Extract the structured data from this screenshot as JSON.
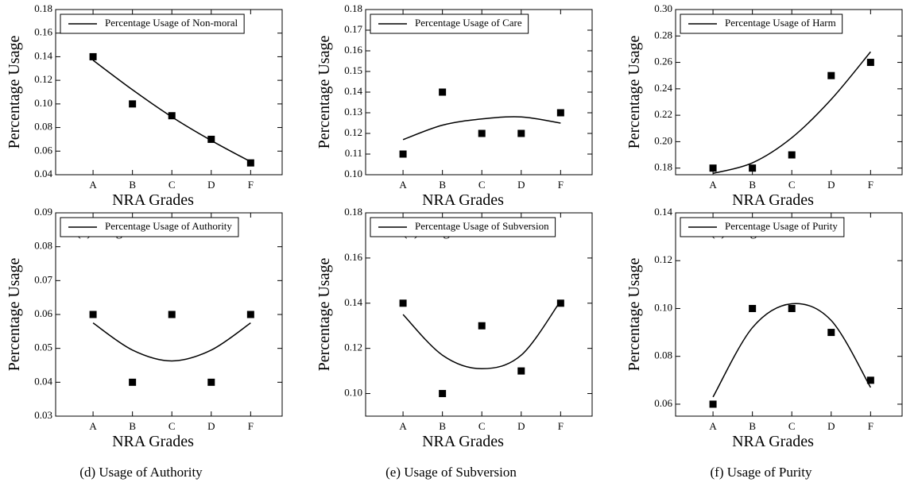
{
  "chart_data": [
    {
      "type": "scatter",
      "caption": "(a) Usage of Non-moral",
      "xlabel": "NRA Grades",
      "ylabel": "Percentage Usage",
      "categories": [
        "A",
        "B",
        "C",
        "D",
        "F"
      ],
      "values": [
        0.14,
        0.1,
        0.09,
        0.07,
        0.05
      ],
      "color": "#000000",
      "series": [
        {
          "name": "Percentage Usage of Non-moral",
          "color": "#000000",
          "values": [
            0.137,
            0.112,
            0.089,
            0.069,
            0.051
          ]
        }
      ],
      "ylim": [
        0.04,
        0.18
      ],
      "yticks": [
        0.04,
        0.06,
        0.08,
        {
          "value": 0.1,
          "label": "0.10"
        },
        0.12,
        0.14,
        0.16,
        0.18
      ],
      "legend": "upper left"
    },
    {
      "type": "scatter",
      "caption": "(b) Usage of Care",
      "xlabel": "NRA Grades",
      "ylabel": "Percentage Usage",
      "categories": [
        "A",
        "B",
        "C",
        "D",
        "F"
      ],
      "values": [
        0.11,
        0.14,
        0.12,
        0.12,
        0.13
      ],
      "color": "#000000",
      "series": [
        {
          "name": "Percentage Usage of Care",
          "color": "#000000",
          "values": [
            0.117,
            0.124,
            0.127,
            0.128,
            0.125
          ]
        }
      ],
      "ylim": [
        0.1,
        0.18
      ],
      "yticks": [
        {
          "value": 0.1,
          "label": "0.10"
        },
        0.11,
        0.12,
        0.13,
        0.14,
        0.15,
        0.16,
        0.17,
        0.18
      ],
      "legend": "upper left"
    },
    {
      "type": "scatter",
      "caption": "(c) Usage of Harm",
      "xlabel": "NRA Grades",
      "ylabel": "Percentage Usage",
      "categories": [
        "A",
        "B",
        "C",
        "D",
        "F"
      ],
      "values": [
        0.18,
        0.18,
        0.19,
        0.25,
        0.26
      ],
      "color": "#000000",
      "series": [
        {
          "name": "Percentage Usage of Harm",
          "color": "#000000",
          "values": [
            0.176,
            0.184,
            0.203,
            0.232,
            0.268
          ]
        }
      ],
      "ylim": [
        0.175,
        0.3
      ],
      "yticks": [
        0.18,
        {
          "value": 0.2,
          "label": "0.20"
        },
        0.22,
        0.24,
        0.26,
        0.28,
        {
          "value": 0.3,
          "label": "0.30"
        }
      ],
      "legend": "upper left"
    },
    {
      "type": "scatter",
      "caption": "(d) Usage of Authority",
      "xlabel": "NRA Grades",
      "ylabel": "Percentage Usage",
      "categories": [
        "A",
        "B",
        "C",
        "D",
        "F"
      ],
      "values": [
        0.06,
        0.04,
        0.06,
        0.04,
        0.06
      ],
      "color": "#000000",
      "series": [
        {
          "name": "Percentage Usage of Authority",
          "color": "#000000",
          "values": [
            0.0575,
            0.0495,
            0.0463,
            0.0495,
            0.0575
          ]
        }
      ],
      "ylim": [
        0.03,
        0.09
      ],
      "yticks": [
        0.03,
        0.04,
        0.05,
        0.06,
        0.07,
        0.08,
        0.09
      ],
      "legend": "upper left"
    },
    {
      "type": "scatter",
      "caption": "(e) Usage of Subversion",
      "xlabel": "NRA Grades",
      "ylabel": "Percentage Usage",
      "categories": [
        "A",
        "B",
        "C",
        "D",
        "F"
      ],
      "values": [
        0.14,
        0.1,
        0.13,
        0.11,
        0.14
      ],
      "color": "#000000",
      "series": [
        {
          "name": "Percentage Usage of Subversion",
          "color": "#000000",
          "values": [
            0.135,
            0.117,
            0.111,
            0.117,
            0.141
          ]
        }
      ],
      "ylim": [
        0.09,
        0.18
      ],
      "yticks": [
        {
          "value": 0.1,
          "label": "0.10"
        },
        0.12,
        0.14,
        0.16,
        0.18
      ],
      "legend": "upper left"
    },
    {
      "type": "scatter",
      "caption": "(f) Usage of Purity",
      "xlabel": "NRA Grades",
      "ylabel": "Percentage Usage",
      "categories": [
        "A",
        "B",
        "C",
        "D",
        "F"
      ],
      "values": [
        0.06,
        0.1,
        0.1,
        0.09,
        0.07
      ],
      "color": "#000000",
      "series": [
        {
          "name": "Percentage Usage of Purity",
          "color": "#000000",
          "values": [
            0.063,
            0.092,
            0.102,
            0.095,
            0.067
          ]
        }
      ],
      "ylim": [
        0.055,
        0.14
      ],
      "yticks": [
        0.06,
        0.08,
        {
          "value": 0.1,
          "label": "0.10"
        },
        0.12,
        0.14
      ],
      "legend": "upper left"
    }
  ]
}
